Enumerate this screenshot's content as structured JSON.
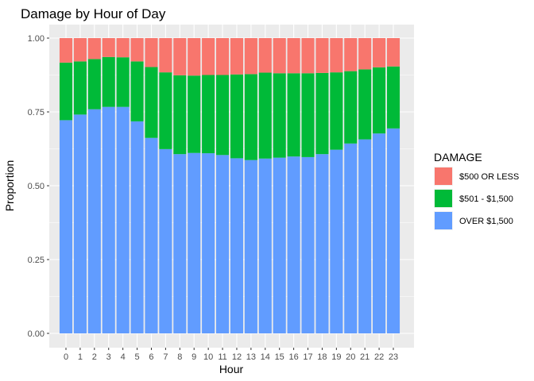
{
  "chart_data": {
    "type": "bar",
    "stacked": true,
    "title": "Damage by Hour of Day",
    "xlabel": "Hour",
    "ylabel": "Proportion",
    "ylim": [
      0,
      1
    ],
    "yticks": [
      "0.00",
      "0.25",
      "0.50",
      "0.75",
      "1.00"
    ],
    "categories": [
      "0",
      "1",
      "2",
      "3",
      "4",
      "5",
      "6",
      "7",
      "8",
      "9",
      "10",
      "11",
      "12",
      "13",
      "14",
      "15",
      "16",
      "17",
      "18",
      "19",
      "20",
      "21",
      "22",
      "23"
    ],
    "legend_title": "DAMAGE",
    "legend_position": "right",
    "grid": true,
    "series": [
      {
        "name": "OVER $1,500",
        "color": "#619CFF",
        "values": [
          0.722,
          0.741,
          0.759,
          0.767,
          0.767,
          0.718,
          0.662,
          0.624,
          0.607,
          0.611,
          0.61,
          0.604,
          0.593,
          0.587,
          0.592,
          0.595,
          0.599,
          0.597,
          0.607,
          0.622,
          0.643,
          0.657,
          0.677,
          0.694
        ]
      },
      {
        "name": "$501 - $1,500",
        "color": "#00BA38",
        "values": [
          0.195,
          0.18,
          0.17,
          0.169,
          0.168,
          0.203,
          0.24,
          0.26,
          0.267,
          0.262,
          0.265,
          0.271,
          0.284,
          0.291,
          0.291,
          0.286,
          0.282,
          0.284,
          0.275,
          0.262,
          0.245,
          0.237,
          0.224,
          0.21
        ]
      },
      {
        "name": "$500 OR LESS",
        "color": "#F8766D",
        "values": [
          0.083,
          0.079,
          0.071,
          0.064,
          0.065,
          0.079,
          0.098,
          0.116,
          0.126,
          0.127,
          0.125,
          0.125,
          0.123,
          0.122,
          0.117,
          0.119,
          0.119,
          0.119,
          0.118,
          0.116,
          0.112,
          0.106,
          0.099,
          0.096
        ]
      }
    ],
    "legend_order": [
      "$500 OR LESS",
      "$501 - $1,500",
      "OVER $1,500"
    ]
  }
}
